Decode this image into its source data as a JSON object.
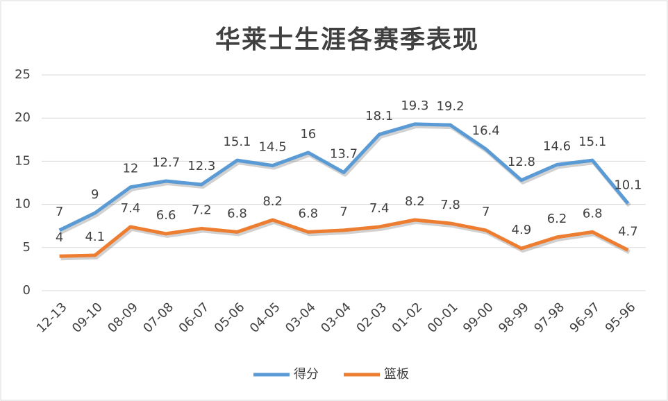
{
  "chart_data": {
    "type": "line",
    "title": "华莱士生涯各赛季表现",
    "categories": [
      "12-13",
      "09-10",
      "08-09",
      "07-08",
      "06-07",
      "05-06",
      "04-05",
      "03-04",
      "03-04",
      "02-03",
      "01-02",
      "00-01",
      "99-00",
      "98-99",
      "97-98",
      "96-97",
      "95-96"
    ],
    "series": [
      {
        "name": "得分",
        "color": "#5b9bd5",
        "values": [
          7,
          9,
          12,
          12.7,
          12.3,
          15.1,
          14.5,
          16,
          13.7,
          18.1,
          19.3,
          19.2,
          16.4,
          12.8,
          14.6,
          15.1,
          10.1
        ]
      },
      {
        "name": "篮板",
        "color": "#ed7d31",
        "values": [
          4,
          4.1,
          7.4,
          6.6,
          7.2,
          6.8,
          8.2,
          6.8,
          7,
          7.4,
          8.2,
          7.8,
          7,
          4.9,
          6.2,
          6.8,
          4.7
        ]
      }
    ],
    "ylim": [
      0,
      25
    ],
    "yticks": [
      0,
      5,
      10,
      15,
      20,
      25
    ],
    "grid": true,
    "legend": "bottom"
  }
}
